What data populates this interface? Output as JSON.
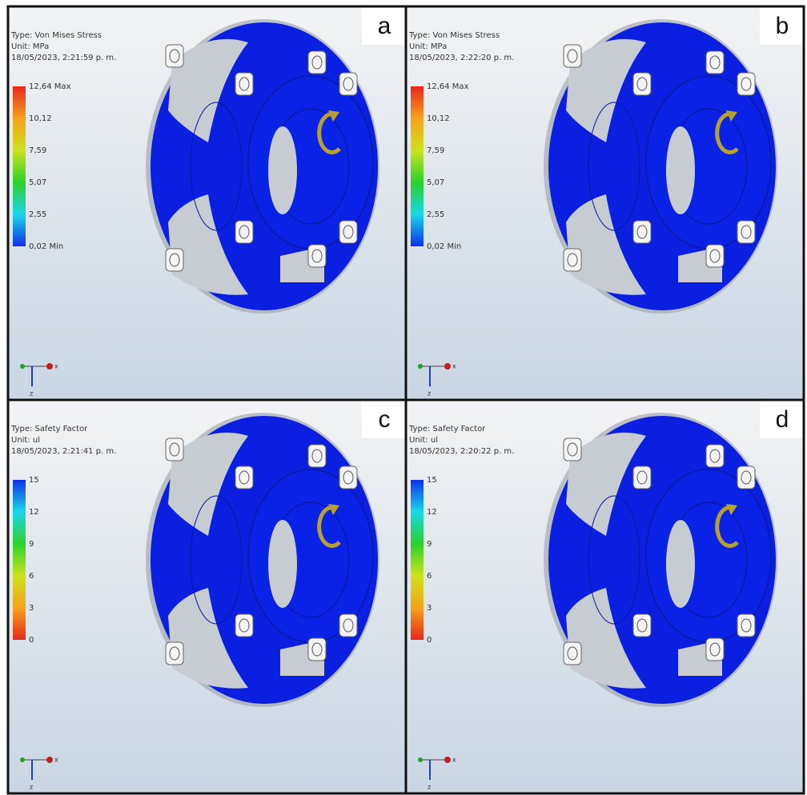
{
  "panels": [
    {
      "letter": "a",
      "type": "Type: Von Mises Stress",
      "unit": "Unit: MPa",
      "date": "18/05/2023, 2:21:59 p. m.",
      "legend": [
        "12,64 Max",
        "10,12",
        "7,59",
        "5,07",
        "2,55",
        "0,02 Min"
      ],
      "scale": "stress",
      "triad": [
        "x",
        "z"
      ]
    },
    {
      "letter": "b",
      "type": "Type: Von Mises Stress",
      "unit": "Unit: MPa",
      "date": "18/05/2023, 2:22:20 p. m.",
      "legend": [
        "12,64 Max",
        "10,12",
        "7,59",
        "5,07",
        "2,55",
        "0,02 Min"
      ],
      "scale": "stress",
      "triad": [
        "x",
        "z"
      ]
    },
    {
      "letter": "c",
      "type": "Type: Safety Factor",
      "unit": "Unit: ul",
      "date": "18/05/2023, 2:21:41 p. m.",
      "legend": [
        "15",
        "12",
        "9",
        "6",
        "3",
        "0"
      ],
      "scale": "safety",
      "triad": [
        "x",
        "z"
      ]
    },
    {
      "letter": "d",
      "type": "Type: Safety Factor",
      "unit": "Unit: ul",
      "date": "18/05/2023, 2:20:22 p. m.",
      "legend": [
        "15",
        "12",
        "9",
        "6",
        "3",
        "0"
      ],
      "scale": "safety",
      "triad": [
        "x",
        "z"
      ]
    }
  ]
}
